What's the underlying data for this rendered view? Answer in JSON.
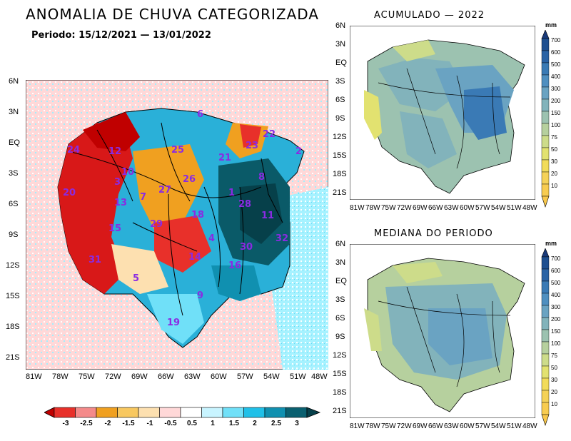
{
  "main_title": "ANOMALIA DE CHUVA CATEGORIZADA",
  "period": "Periodo: 15/12/2021 — 13/01/2022",
  "panel_top_right_title": "ACUMULADO — 2022",
  "panel_bottom_right_title": "MEDIANA DO PERIODO",
  "unit": "mm",
  "lat_labels": [
    "6N",
    "3N",
    "EQ",
    "3S",
    "6S",
    "9S",
    "12S",
    "15S",
    "18S",
    "21S"
  ],
  "lon_labels": [
    "81W",
    "78W",
    "75W",
    "72W",
    "69W",
    "66W",
    "63W",
    "60W",
    "57W",
    "54W",
    "51W",
    "48W"
  ],
  "lon_labels_small": [
    "81W",
    "78W",
    "75W",
    "72W",
    "69W",
    "66W",
    "63W",
    "60W",
    "57W",
    "54W",
    "51W",
    "48W"
  ],
  "anomaly_scale": {
    "ticks": [
      "-3",
      "-2.5",
      "-2",
      "-1.5",
      "-1",
      "-0.5",
      "0.5",
      "1",
      "1.5",
      "2",
      "2.5",
      "3"
    ],
    "colors": [
      "#c00000",
      "#e8302a",
      "#f48a8a",
      "#f0a020",
      "#f8c860",
      "#fde0b0",
      "#ffffff",
      "#c8f4ff",
      "#70e0f8",
      "#20c0e8",
      "#1090b0",
      "#0a6070",
      "#06404a"
    ]
  },
  "accum_scale": {
    "ticks": [
      "700",
      "600",
      "500",
      "400",
      "300",
      "200",
      "150",
      "100",
      "75",
      "50",
      "30",
      "20",
      "10"
    ],
    "colors": [
      "#1a3a7a",
      "#1e4f90",
      "#2a63a5",
      "#3a7ab5",
      "#4f8fc0",
      "#6aa3c2",
      "#82b3bb",
      "#9cc2b0",
      "#b6d09e",
      "#cddc8a",
      "#e2e270",
      "#f2dc5a",
      "#f9c84a"
    ]
  },
  "basin_numbers": [
    "6",
    "22",
    "23",
    "24",
    "12",
    "25",
    "21",
    "2",
    "10",
    "3",
    "26",
    "27",
    "8",
    "20",
    "13",
    "7",
    "1",
    "28",
    "11",
    "18",
    "29",
    "15",
    "4",
    "32",
    "30",
    "31",
    "14",
    "16",
    "5",
    "9",
    "19"
  ]
}
